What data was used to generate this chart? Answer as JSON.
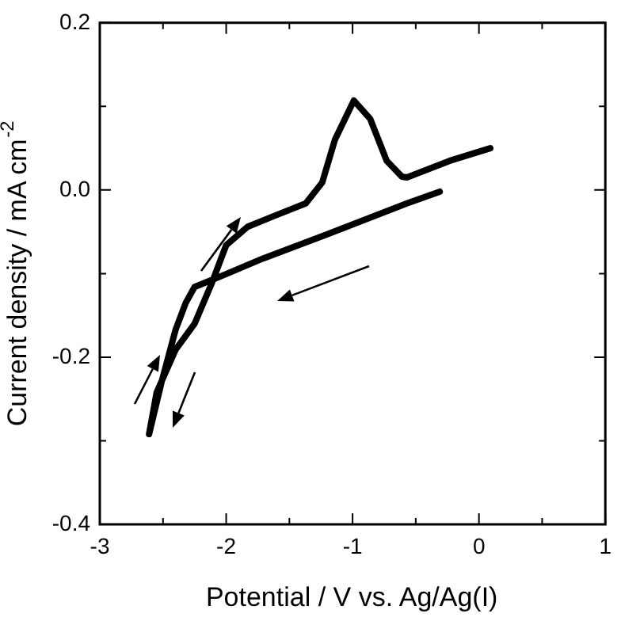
{
  "chart_data": {
    "type": "line",
    "xlabel": "Potential / V vs. Ag/Ag(I)",
    "ylabel": "Current density / mA cm$^{-2}$",
    "x": [
      -0.31,
      -0.57,
      -1.2,
      -1.71,
      -2.04,
      -2.25,
      -2.32,
      -2.4,
      -2.51,
      -2.61,
      -2.55,
      -2.4,
      -2.25,
      -2.11,
      -2.0,
      -1.83,
      -1.62,
      -1.37,
      -1.24,
      -1.14,
      -0.99,
      -0.86,
      -0.73,
      -0.61,
      -0.57,
      -0.23,
      0.09
    ],
    "series": [
      {
        "color": "#000000",
        "values": [
          -0.002,
          -0.016,
          -0.053,
          -0.082,
          -0.103,
          -0.116,
          -0.135,
          -0.167,
          -0.229,
          -0.292,
          -0.242,
          -0.191,
          -0.16,
          -0.11,
          -0.066,
          -0.044,
          -0.031,
          -0.016,
          0.009,
          0.06,
          0.107,
          0.085,
          0.035,
          0.016,
          0.015,
          0.035,
          0.05
        ]
      }
    ],
    "xlim": [
      -3,
      1
    ],
    "ylim": [
      -0.4,
      0.2
    ],
    "xticks": [
      -3,
      {
        "value": -2.5,
        "label": null
      },
      -2,
      {
        "value": -1.5,
        "label": null
      },
      -1,
      {
        "value": -0.5,
        "label": null
      },
      0,
      {
        "value": 0.5,
        "label": null
      },
      1
    ],
    "yticks": [
      "-0.4",
      {
        "value": -0.3,
        "label": null
      },
      {
        "value": -0.2,
        "label": "-0.2"
      },
      {
        "value": -0.1,
        "label": null
      },
      {
        "value": 0,
        "label": "0.0"
      },
      {
        "value": 0.1,
        "label": null
      },
      {
        "value": 0.2,
        "label": "0.2"
      }
    ],
    "grid": false,
    "legend": false,
    "marker": "none",
    "line_style": "solid"
  }
}
